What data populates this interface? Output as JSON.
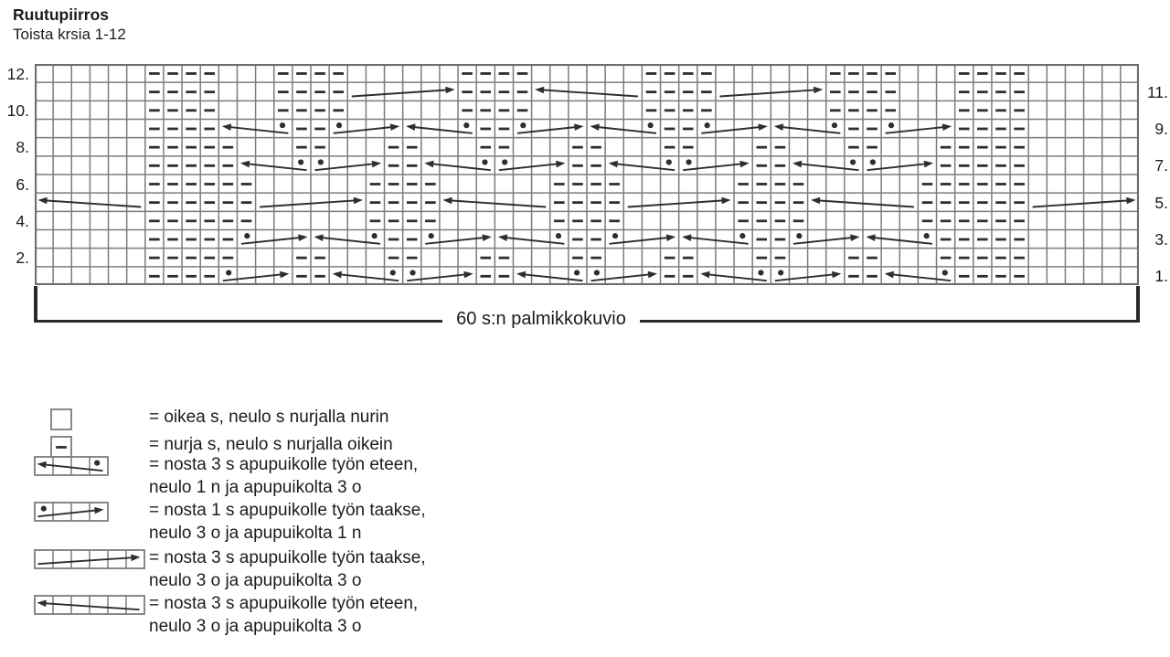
{
  "title": "Ruutupiirros",
  "subtitle": "Toista krsia 1-12",
  "bracket_label": "60 s:n palmikkokuvio",
  "colors": {
    "background": "#ffffff",
    "grid_line": "#7c7c7c",
    "grid_border": "#6d6d6d",
    "symbol": "#2e2e2e",
    "text": "#1c1c1c"
  },
  "chart_data": {
    "type": "knitting-chart",
    "columns": 60,
    "row_count": 12,
    "legend_position": "bottom-left",
    "rows": [
      {
        "num": 12,
        "label": "12.",
        "label_side": "left",
        "purls": [
          [
            7,
            10
          ],
          [
            14,
            17
          ],
          [
            24,
            27
          ],
          [
            34,
            37
          ],
          [
            44,
            47
          ],
          [
            51,
            54
          ]
        ],
        "cables": []
      },
      {
        "num": 11,
        "label": "11.",
        "label_side": "right",
        "purls": [
          [
            7,
            10
          ],
          [
            14,
            17
          ],
          [
            24,
            27
          ],
          [
            34,
            37
          ],
          [
            44,
            47
          ],
          [
            51,
            54
          ]
        ],
        "cables": [
          {
            "from": 18,
            "to": 23,
            "dir": "right"
          },
          {
            "from": 28,
            "to": 33,
            "dir": "left"
          },
          {
            "from": 38,
            "to": 43,
            "dir": "right"
          }
        ]
      },
      {
        "num": 10,
        "label": "10.",
        "label_side": "left",
        "purls": [
          [
            7,
            10
          ],
          [
            14,
            17
          ],
          [
            24,
            27
          ],
          [
            34,
            37
          ],
          [
            44,
            47
          ],
          [
            51,
            54
          ]
        ],
        "cables": []
      },
      {
        "num": 9,
        "label": "9.",
        "label_side": "right",
        "purls": [
          [
            7,
            10
          ],
          [
            15,
            16
          ],
          [
            25,
            26
          ],
          [
            35,
            36
          ],
          [
            45,
            46
          ],
          [
            51,
            54
          ]
        ],
        "cables": [
          {
            "from": 11,
            "to": 14,
            "dir": "left",
            "dot": 14
          },
          {
            "from": 17,
            "to": 20,
            "dir": "right",
            "dot": 17
          },
          {
            "from": 21,
            "to": 24,
            "dir": "left",
            "dot": 24
          },
          {
            "from": 27,
            "to": 30,
            "dir": "right",
            "dot": 27
          },
          {
            "from": 31,
            "to": 34,
            "dir": "left",
            "dot": 34
          },
          {
            "from": 37,
            "to": 40,
            "dir": "right",
            "dot": 37
          },
          {
            "from": 41,
            "to": 44,
            "dir": "left",
            "dot": 44
          },
          {
            "from": 47,
            "to": 50,
            "dir": "right",
            "dot": 47
          }
        ]
      },
      {
        "num": 8,
        "label": "8.",
        "label_side": "left",
        "purls": [
          [
            7,
            11
          ],
          [
            15,
            16
          ],
          [
            20,
            21
          ],
          [
            25,
            26
          ],
          [
            30,
            31
          ],
          [
            35,
            36
          ],
          [
            40,
            41
          ],
          [
            45,
            46
          ],
          [
            50,
            54
          ]
        ],
        "cables": []
      },
      {
        "num": 7,
        "label": "7.",
        "label_side": "right",
        "purls": [
          [
            7,
            11
          ],
          [
            20,
            21
          ],
          [
            30,
            31
          ],
          [
            40,
            41
          ],
          [
            50,
            54
          ]
        ],
        "cables": [
          {
            "from": 12,
            "to": 15,
            "dir": "left",
            "dot": 15
          },
          {
            "from": 16,
            "to": 19,
            "dir": "right",
            "dot": 16
          },
          {
            "from": 22,
            "to": 25,
            "dir": "left",
            "dot": 25
          },
          {
            "from": 26,
            "to": 29,
            "dir": "right",
            "dot": 26
          },
          {
            "from": 32,
            "to": 35,
            "dir": "left",
            "dot": 35
          },
          {
            "from": 36,
            "to": 39,
            "dir": "right",
            "dot": 36
          },
          {
            "from": 42,
            "to": 45,
            "dir": "left",
            "dot": 45
          },
          {
            "from": 46,
            "to": 49,
            "dir": "right",
            "dot": 46
          }
        ]
      },
      {
        "num": 6,
        "label": "6.",
        "label_side": "left",
        "purls": [
          [
            7,
            12
          ],
          [
            19,
            22
          ],
          [
            29,
            32
          ],
          [
            39,
            42
          ],
          [
            49,
            54
          ]
        ],
        "cables": []
      },
      {
        "num": 5,
        "label": "5.",
        "label_side": "right",
        "purls": [
          [
            7,
            12
          ],
          [
            19,
            22
          ],
          [
            29,
            32
          ],
          [
            39,
            42
          ],
          [
            49,
            54
          ]
        ],
        "cables": [
          {
            "from": 1,
            "to": 6,
            "dir": "left"
          },
          {
            "from": 13,
            "to": 18,
            "dir": "right"
          },
          {
            "from": 23,
            "to": 28,
            "dir": "left"
          },
          {
            "from": 33,
            "to": 38,
            "dir": "right"
          },
          {
            "from": 43,
            "to": 48,
            "dir": "left"
          },
          {
            "from": 55,
            "to": 60,
            "dir": "right"
          }
        ]
      },
      {
        "num": 4,
        "label": "4.",
        "label_side": "left",
        "purls": [
          [
            7,
            12
          ],
          [
            19,
            22
          ],
          [
            29,
            32
          ],
          [
            39,
            42
          ],
          [
            49,
            54
          ]
        ],
        "cables": []
      },
      {
        "num": 3,
        "label": "3.",
        "label_side": "right",
        "purls": [
          [
            7,
            11
          ],
          [
            20,
            21
          ],
          [
            30,
            31
          ],
          [
            40,
            41
          ],
          [
            50,
            54
          ]
        ],
        "cables": [
          {
            "from": 12,
            "to": 15,
            "dir": "right",
            "dot": 12
          },
          {
            "from": 16,
            "to": 19,
            "dir": "left",
            "dot": 19
          },
          {
            "from": 22,
            "to": 25,
            "dir": "right",
            "dot": 22
          },
          {
            "from": 26,
            "to": 29,
            "dir": "left",
            "dot": 29
          },
          {
            "from": 32,
            "to": 35,
            "dir": "right",
            "dot": 32
          },
          {
            "from": 36,
            "to": 39,
            "dir": "left",
            "dot": 39
          },
          {
            "from": 42,
            "to": 45,
            "dir": "right",
            "dot": 42
          },
          {
            "from": 46,
            "to": 49,
            "dir": "left",
            "dot": 49
          }
        ]
      },
      {
        "num": 2,
        "label": "2.",
        "label_side": "left",
        "purls": [
          [
            7,
            11
          ],
          [
            15,
            16
          ],
          [
            20,
            21
          ],
          [
            25,
            26
          ],
          [
            30,
            31
          ],
          [
            35,
            36
          ],
          [
            40,
            41
          ],
          [
            45,
            46
          ],
          [
            50,
            54
          ]
        ],
        "cables": []
      },
      {
        "num": 1,
        "label": "1.",
        "label_side": "right",
        "purls": [
          [
            7,
            10
          ],
          [
            15,
            16
          ],
          [
            25,
            26
          ],
          [
            35,
            36
          ],
          [
            45,
            46
          ],
          [
            51,
            54
          ]
        ],
        "cables": [
          {
            "from": 11,
            "to": 14,
            "dir": "right",
            "dot": 11
          },
          {
            "from": 17,
            "to": 20,
            "dir": "left",
            "dot": 20
          },
          {
            "from": 21,
            "to": 24,
            "dir": "right",
            "dot": 21
          },
          {
            "from": 27,
            "to": 30,
            "dir": "left",
            "dot": 30
          },
          {
            "from": 31,
            "to": 34,
            "dir": "right",
            "dot": 31
          },
          {
            "from": 37,
            "to": 40,
            "dir": "left",
            "dot": 40
          },
          {
            "from": 41,
            "to": 44,
            "dir": "right",
            "dot": 41
          },
          {
            "from": 47,
            "to": 50,
            "dir": "left",
            "dot": 50
          }
        ]
      }
    ]
  },
  "legend": {
    "items": [
      {
        "symbol": {
          "cells": 1
        },
        "icon": "knit-stitch-icon",
        "lines": [
          "= oikea s, neulo s nurjalla nurin"
        ]
      },
      {
        "symbol": {
          "cells": 1,
          "dash": true
        },
        "icon": "purl-stitch-icon",
        "lines": [
          "= nurja s, neulo s nurjalla oikein"
        ]
      },
      {
        "symbol": {
          "cells": 4,
          "dir": "left",
          "dot": 4
        },
        "icon": "cable-front-3-1-icon",
        "lines": [
          "= nosta 3 s apupuikolle työn eteen,",
          "neulo 1 n ja apupuikolta 3 o"
        ]
      },
      {
        "symbol": {
          "cells": 4,
          "dir": "right",
          "dot": 1
        },
        "icon": "cable-back-1-3-icon",
        "lines": [
          "= nosta 1 s apupuikolle työn taakse,",
          "neulo 3 o ja apupuikolta 1 n"
        ]
      },
      {
        "symbol": {
          "cells": 6,
          "dir": "right"
        },
        "icon": "cable-back-3-3-icon",
        "lines": [
          "= nosta 3 s apupuikolle työn taakse,",
          "neulo 3 o ja apupuikolta 3 o"
        ]
      },
      {
        "symbol": {
          "cells": 6,
          "dir": "left"
        },
        "icon": "cable-front-3-3-icon",
        "lines": [
          "= nosta 3 s apupuikolle työn eteen,",
          "neulo 3 o ja apupuikolta 3 o"
        ]
      }
    ]
  }
}
